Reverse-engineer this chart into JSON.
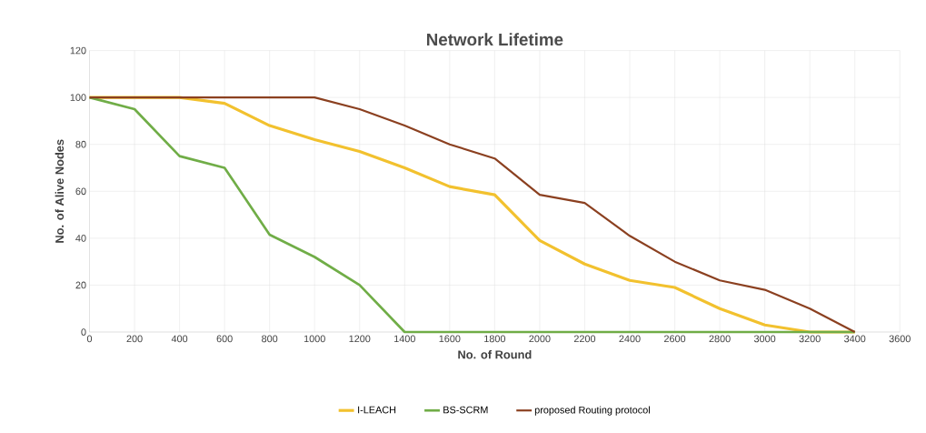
{
  "chart_data": {
    "type": "line",
    "title": "Network Lifetime",
    "xlabel": "No. of Round",
    "ylabel": "No. of Alive Nodes",
    "x": [
      0,
      200,
      400,
      600,
      800,
      1000,
      1200,
      1400,
      1600,
      1800,
      2000,
      2200,
      2400,
      2600,
      2800,
      3000,
      3200,
      3400
    ],
    "series": [
      {
        "name": "I-LEACH",
        "color": "#f2c12e",
        "values": [
          100,
          100,
          100,
          97.5,
          88,
          82,
          77,
          70,
          62,
          58.5,
          39,
          29,
          22,
          19,
          10,
          3,
          0,
          0
        ]
      },
      {
        "name": "BS-SCRM",
        "color": "#70ad47",
        "values": [
          100,
          95,
          75,
          70,
          41.5,
          32,
          20,
          0,
          0,
          0,
          0,
          0,
          0,
          0,
          0,
          0,
          0,
          0
        ]
      },
      {
        "name": "proposed Routing protocol",
        "color": "#8b4020",
        "values": [
          100,
          100,
          100,
          100,
          100,
          100,
          95,
          88,
          80,
          74,
          58.5,
          55,
          41,
          30,
          22,
          18,
          10,
          0
        ]
      }
    ],
    "xlim": [
      0,
      3600
    ],
    "xticks": [
      0,
      200,
      400,
      600,
      800,
      1000,
      1200,
      1400,
      1600,
      1800,
      2000,
      2200,
      2400,
      2600,
      2800,
      3000,
      3200,
      3400,
      3600
    ],
    "ylim": [
      0,
      120
    ],
    "yticks": [
      0,
      20,
      40,
      60,
      80,
      100,
      120
    ],
    "grid": true,
    "legend": "bottom",
    "marker": "none",
    "line_style": "solid"
  }
}
